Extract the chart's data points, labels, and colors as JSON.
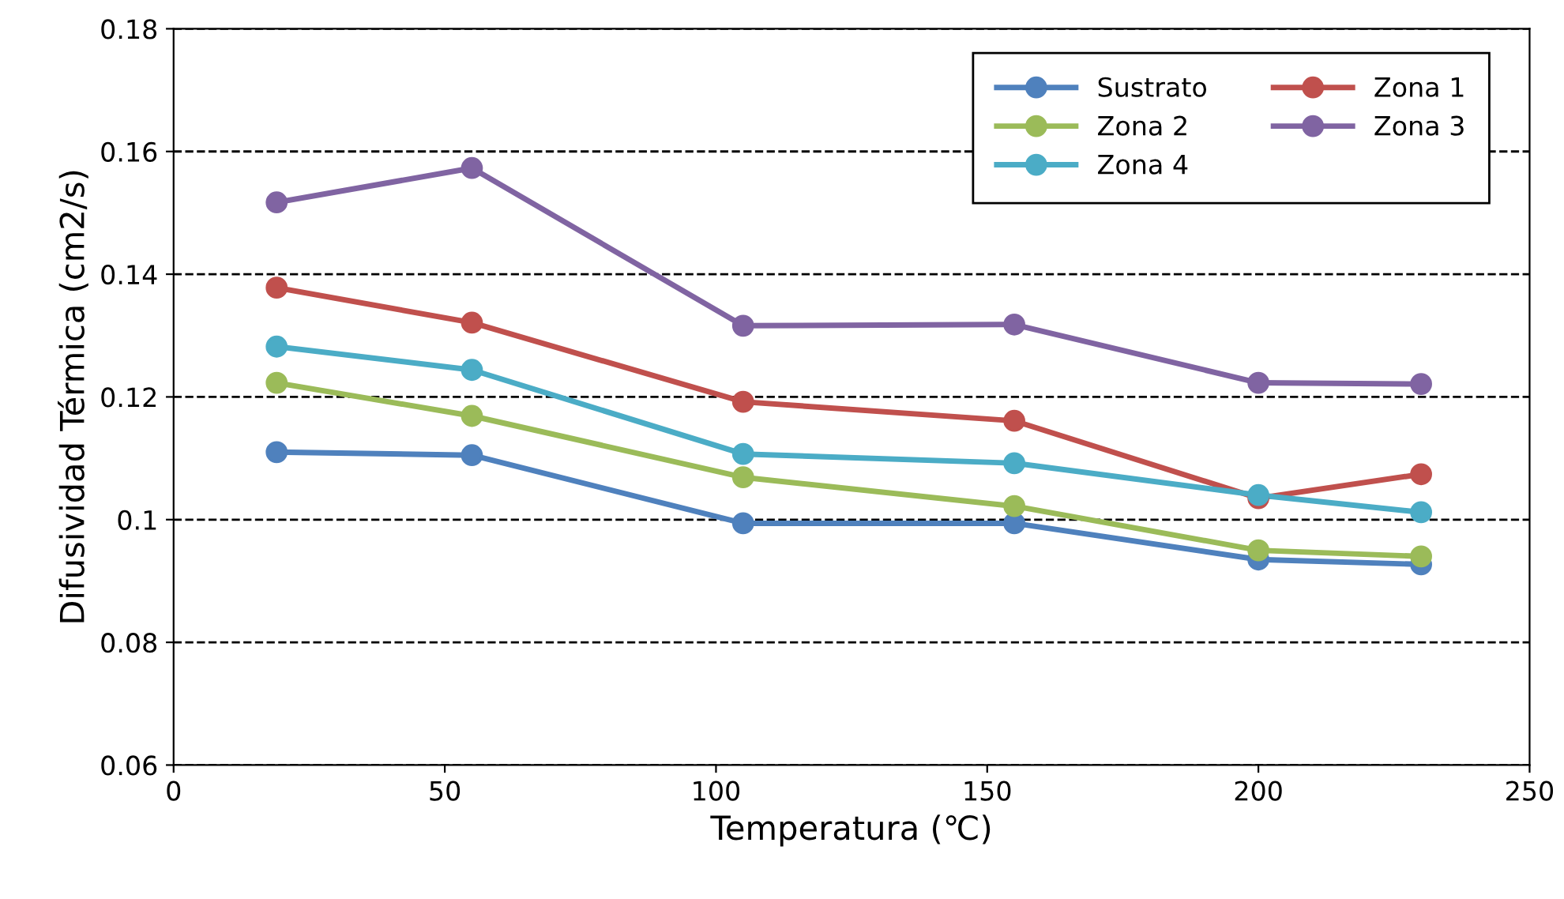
{
  "chart_data": {
    "type": "line",
    "xlabel": "Temperatura (℃)",
    "ylabel": "Difusividad Térmica (cm2/s)",
    "x": [
      19,
      55,
      105,
      155,
      200,
      230
    ],
    "series": [
      {
        "name": "Sustrato",
        "color": "#4f81bd",
        "values": [
          0.111,
          0.1105,
          0.0994,
          0.0994,
          0.0935,
          0.0927
        ]
      },
      {
        "name": "Zona 1",
        "color": "#c0504d",
        "values": [
          0.1378,
          0.1321,
          0.1192,
          0.1161,
          0.1035,
          0.1074
        ]
      },
      {
        "name": "Zona 2",
        "color": "#9bbb59",
        "values": [
          0.1223,
          0.1169,
          0.1069,
          0.1022,
          0.095,
          0.094
        ]
      },
      {
        "name": "Zona 3",
        "color": "#8064a2",
        "values": [
          0.1517,
          0.1573,
          0.1316,
          0.1318,
          0.1223,
          0.1221
        ]
      },
      {
        "name": "Zona 4",
        "color": "#4bacc6",
        "values": [
          0.1282,
          0.1244,
          0.1107,
          0.1092,
          0.104,
          0.1012
        ]
      }
    ],
    "xlim": [
      0,
      250
    ],
    "xticks": [
      0,
      50,
      100,
      150,
      200,
      250
    ],
    "ylim": [
      0.06,
      0.18
    ],
    "yticks": [
      0.06,
      0.08,
      0.1,
      0.12,
      0.14,
      0.16,
      0.18
    ],
    "grid": "y",
    "legend": "top right",
    "marker": "circle",
    "line_style": "solid"
  }
}
